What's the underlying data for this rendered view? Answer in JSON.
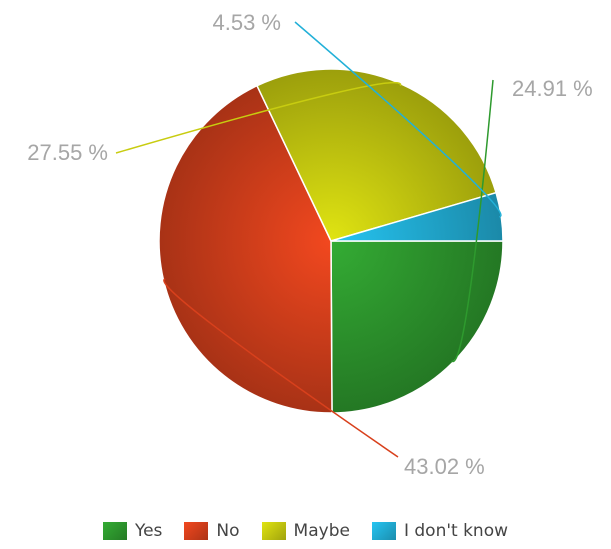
{
  "chart_data": {
    "type": "pie",
    "title": "",
    "start_angle_deg": 0,
    "direction": "clockwise",
    "slices": [
      {
        "name": "Yes",
        "value": 24.91,
        "label": "24.91 %",
        "color": "#2e9a2e"
      },
      {
        "name": "No",
        "value": 43.02,
        "label": "43.02 %",
        "color": "#d8401c"
      },
      {
        "name": "Maybe",
        "value": 27.55,
        "label": "27.55 %",
        "color": "#c8cc10"
      },
      {
        "name": "I don't know",
        "value": 4.53,
        "label": "4.53 %",
        "color": "#22b0d8"
      }
    ],
    "legend": {
      "position": "bottom",
      "items": [
        "Yes",
        "No",
        "Maybe",
        "I don't know"
      ]
    }
  }
}
